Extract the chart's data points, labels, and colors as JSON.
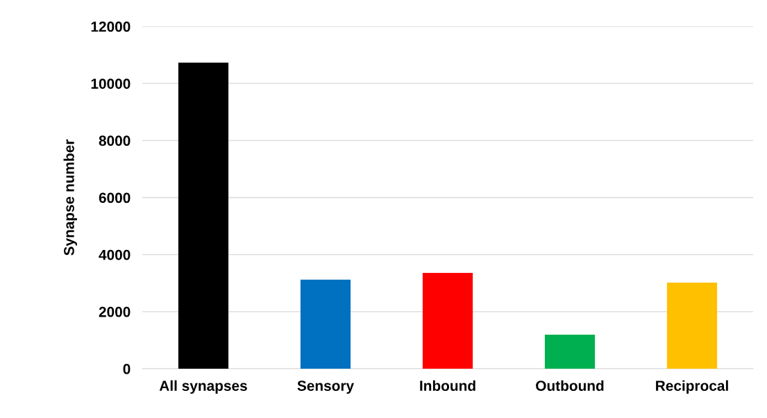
{
  "chart_data": {
    "type": "bar",
    "ylabel": "Synapse number",
    "categories": [
      "All synapses",
      "Sensory",
      "Inbound",
      "Outbound",
      "Reciprocal"
    ],
    "values": [
      10730,
      3120,
      3360,
      1190,
      3020
    ],
    "colors": [
      "#000000",
      "#0070c0",
      "#ff0000",
      "#00b050",
      "#ffc000"
    ],
    "ylim": [
      0,
      12000
    ],
    "yticks": [
      0,
      2000,
      4000,
      6000,
      8000,
      10000,
      12000
    ],
    "grid": "y",
    "legend": false
  }
}
